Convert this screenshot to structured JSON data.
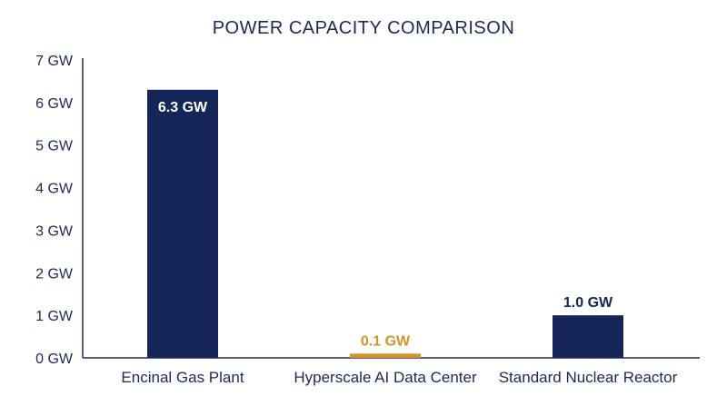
{
  "chart_data": {
    "type": "bar",
    "title": "POWER CAPACITY COMPARISON",
    "categories": [
      "Encinal Gas Plant",
      "Hyperscale AI Data Center",
      "Standard Nuclear Reactor"
    ],
    "values": [
      6.3,
      0.1,
      1.0
    ],
    "data_labels": [
      "6.3 GW",
      "0.1 GW",
      "1.0 GW"
    ],
    "bar_colors": [
      "#142558",
      "#d4922a",
      "#142558"
    ],
    "data_label_colors": [
      "#ffffff",
      "#d4922a",
      "#142558"
    ],
    "data_label_inside": [
      true,
      false,
      false
    ],
    "y_ticks": [
      0,
      1,
      2,
      3,
      4,
      5,
      6,
      7
    ],
    "y_tick_labels": [
      "0 GW",
      "1 GW",
      "2 GW",
      "3 GW",
      "4 GW",
      "5 GW",
      "6 GW",
      "7 GW"
    ],
    "ylim": [
      0,
      7
    ],
    "xlabel": "",
    "ylabel": "",
    "grid": false,
    "legend": "none"
  },
  "colors": {
    "text": "#1b2a55",
    "axis": "#1b2a55"
  }
}
